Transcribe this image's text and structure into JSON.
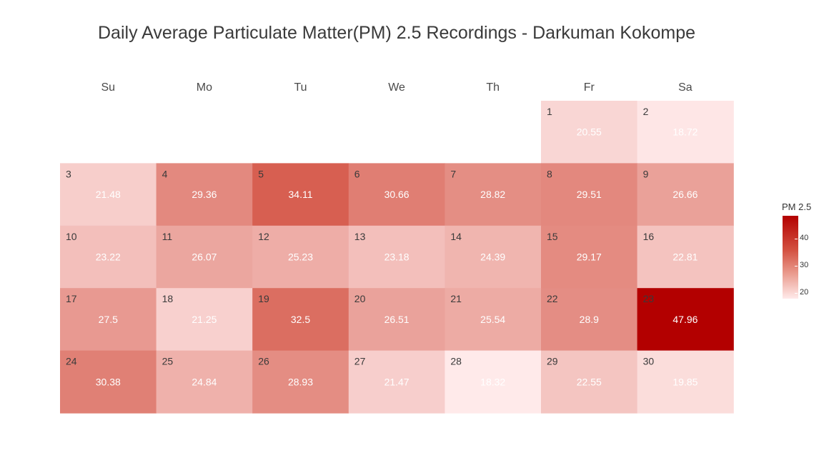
{
  "chart_data": {
    "type": "heatmap",
    "title": "Daily Average Particulate Matter(PM) 2.5 Recordings - Darkuman Kokompe",
    "weekdays": [
      "Su",
      "Mo",
      "Tu",
      "We",
      "Th",
      "Fr",
      "Sa"
    ],
    "first_weekday_index": 5,
    "days": [
      {
        "day": "1",
        "value": 20.55,
        "label": "20.55"
      },
      {
        "day": "2",
        "value": 18.72,
        "label": "18.72"
      },
      {
        "day": "3",
        "value": 21.48,
        "label": "21.48"
      },
      {
        "day": "4",
        "value": 29.36,
        "label": "29.36"
      },
      {
        "day": "5",
        "value": 34.11,
        "label": "34.11"
      },
      {
        "day": "6",
        "value": 30.66,
        "label": "30.66"
      },
      {
        "day": "7",
        "value": 28.82,
        "label": "28.82"
      },
      {
        "day": "8",
        "value": 29.51,
        "label": "29.51"
      },
      {
        "day": "9",
        "value": 26.66,
        "label": "26.66"
      },
      {
        "day": "10",
        "value": 23.22,
        "label": "23.22"
      },
      {
        "day": "11",
        "value": 26.07,
        "label": "26.07"
      },
      {
        "day": "12",
        "value": 25.23,
        "label": "25.23"
      },
      {
        "day": "13",
        "value": 23.18,
        "label": "23.18"
      },
      {
        "day": "14",
        "value": 24.39,
        "label": "24.39"
      },
      {
        "day": "15",
        "value": 29.17,
        "label": "29.17"
      },
      {
        "day": "16",
        "value": 22.81,
        "label": "22.81"
      },
      {
        "day": "17",
        "value": 27.5,
        "label": "27.5"
      },
      {
        "day": "18",
        "value": 21.25,
        "label": "21.25"
      },
      {
        "day": "19",
        "value": 32.5,
        "label": "32.5"
      },
      {
        "day": "20",
        "value": 26.51,
        "label": "26.51"
      },
      {
        "day": "21",
        "value": 25.54,
        "label": "25.54"
      },
      {
        "day": "22",
        "value": 28.9,
        "label": "28.9"
      },
      {
        "day": "23",
        "value": 47.96,
        "label": "47.96"
      },
      {
        "day": "24",
        "value": 30.38,
        "label": "30.38"
      },
      {
        "day": "25",
        "value": 24.84,
        "label": "24.84"
      },
      {
        "day": "26",
        "value": 28.93,
        "label": "28.93"
      },
      {
        "day": "27",
        "value": 21.47,
        "label": "21.47"
      },
      {
        "day": "28",
        "value": 18.32,
        "label": "18.32"
      },
      {
        "day": "29",
        "value": 22.55,
        "label": "22.55"
      },
      {
        "day": "30",
        "value": 19.85,
        "label": "19.85"
      }
    ],
    "legend": {
      "title": "PM 2.5",
      "ticks": [
        "40",
        "30",
        "20"
      ],
      "range": [
        18.32,
        47.96
      ],
      "low_color": "#ffeaea",
      "high_color": "#b30000"
    }
  }
}
